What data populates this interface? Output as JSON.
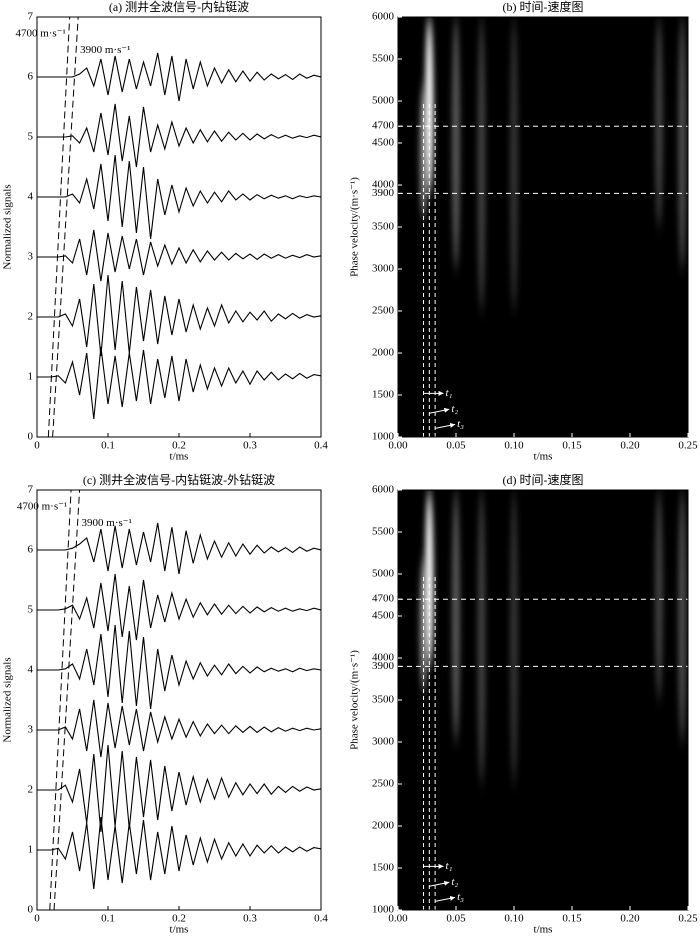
{
  "chart_data": [
    {
      "type": "line",
      "title": "(a) 测井全波信号-内钻铤波",
      "xlabel": "t/ms",
      "ylabel": "Normalized signals",
      "xlim": [
        0,
        0.4
      ],
      "ylim": [
        0,
        7
      ],
      "xticks": [
        0,
        0.1,
        0.2,
        0.3,
        0.4
      ],
      "yticks": [
        0,
        1,
        2,
        3,
        4,
        5,
        6,
        7
      ],
      "x": [
        0,
        0.01,
        0.02,
        0.03,
        0.04,
        0.05,
        0.06,
        0.07,
        0.08,
        0.09,
        0.1,
        0.11,
        0.12,
        0.13,
        0.14,
        0.15,
        0.16,
        0.17,
        0.18,
        0.19,
        0.2,
        0.21,
        0.22,
        0.23,
        0.24,
        0.25,
        0.26,
        0.27,
        0.28,
        0.29,
        0.3,
        0.31,
        0.32,
        0.33,
        0.34,
        0.35,
        0.36,
        0.37,
        0.38,
        0.39,
        0.4
      ],
      "series": [
        {
          "color": "#000000",
          "values": [
            1,
            1,
            1,
            1.02,
            0.9,
            1.25,
            0.7,
            1.4,
            0.3,
            1.5,
            0.55,
            1.35,
            0.5,
            1.4,
            0.6,
            1.45,
            0.55,
            1.3,
            0.65,
            1.35,
            0.6,
            1.3,
            0.75,
            1.2,
            0.8,
            1.15,
            0.85,
            1.15,
            0.9,
            1.1,
            0.88,
            1.1,
            0.95,
            1.08,
            0.95,
            1.05,
            0.97,
            1.06,
            0.98,
            1.04,
            1.02
          ]
        },
        {
          "color": "#000000",
          "values": [
            2,
            2,
            2,
            2,
            2.05,
            1.85,
            2.3,
            1.5,
            2.55,
            1.35,
            2.7,
            1.45,
            2.6,
            1.4,
            2.5,
            1.6,
            2.45,
            1.55,
            2.35,
            1.7,
            2.3,
            1.75,
            2.2,
            1.8,
            2.15,
            1.85,
            2.2,
            1.9,
            2.1,
            1.92,
            2.08,
            1.95,
            2.1,
            1.93,
            2.05,
            1.97,
            2.06,
            1.98,
            2.04,
            2,
            2.02
          ]
        },
        {
          "color": "#000000",
          "values": [
            3,
            3,
            3,
            3,
            3.02,
            2.9,
            3.3,
            2.7,
            3.45,
            2.6,
            3.4,
            2.75,
            3.35,
            2.8,
            3.3,
            2.7,
            3.25,
            2.85,
            3.2,
            2.88,
            3.15,
            2.9,
            3.12,
            2.92,
            3.1,
            2.95,
            3.08,
            2.95,
            3.06,
            2.97,
            3.05,
            2.96,
            3.05,
            2.98,
            3.04,
            2.98,
            3.03,
            2.99,
            3.04,
            3,
            3.02
          ]
        },
        {
          "color": "#000000",
          "values": [
            4,
            4,
            4,
            4,
            4,
            4.05,
            3.9,
            4.3,
            3.8,
            4.55,
            3.6,
            4.7,
            3.5,
            4.6,
            3.4,
            4.5,
            3.3,
            4.3,
            3.7,
            4.2,
            3.75,
            4.15,
            3.85,
            4.1,
            3.9,
            4.08,
            3.92,
            4.1,
            3.95,
            4.05,
            3.95,
            4.04,
            3.97,
            4.03,
            3.98,
            4.02,
            3.97,
            4.02,
            3.99,
            4.02,
            4
          ]
        },
        {
          "color": "#000000",
          "values": [
            5,
            5,
            5,
            5,
            5,
            5.02,
            4.9,
            5.15,
            4.75,
            5.4,
            4.7,
            5.55,
            4.6,
            5.35,
            4.5,
            5.5,
            4.75,
            5.2,
            4.8,
            5.25,
            4.85,
            5.15,
            4.9,
            5.12,
            4.92,
            5.1,
            4.93,
            5.08,
            4.95,
            5.06,
            4.95,
            5.05,
            4.97,
            5.04,
            4.98,
            5.03,
            4.98,
            5.02,
            4.99,
            5.03,
            5
          ]
        },
        {
          "color": "#000000",
          "values": [
            6,
            6,
            6,
            6,
            6,
            6,
            6.05,
            6.15,
            5.85,
            6.3,
            5.7,
            6.35,
            5.75,
            6.3,
            5.8,
            6.25,
            5.85,
            6.4,
            5.7,
            6.35,
            5.6,
            6.3,
            5.8,
            6.25,
            5.85,
            6.15,
            5.9,
            6.12,
            5.92,
            6.1,
            5.93,
            6.08,
            5.95,
            6.05,
            5.97,
            6.04,
            5.96,
            6.05,
            5.98,
            6.03,
            6
          ]
        }
      ],
      "reference_lines": [
        {
          "label": "4700 m·s⁻¹",
          "x": [
            0.016,
            0.046
          ],
          "y": [
            0,
            7
          ]
        },
        {
          "label": "3900 m·s⁻¹",
          "x": [
            0.022,
            0.058
          ],
          "y": [
            0,
            7
          ]
        }
      ]
    },
    {
      "type": "heatmap",
      "title": "(b) 时间-速度图",
      "xlabel": "t/ms",
      "ylabel": "Phase velocity/(m·s⁻¹)",
      "xlim": [
        0,
        0.25
      ],
      "ylim": [
        1000,
        6000
      ],
      "xticks": [
        {
          "value": 0,
          "label": "0.00"
        },
        {
          "value": 0.05,
          "label": "0.05"
        },
        {
          "value": 0.1,
          "label": "0.10"
        },
        {
          "value": 0.15,
          "label": "0.15"
        },
        {
          "value": 0.2,
          "label": "0.20"
        },
        {
          "value": 0.25,
          "label": "0.25"
        }
      ],
      "yticks": [
        1000,
        1500,
        2000,
        2500,
        3000,
        3500,
        3900,
        4000,
        4500,
        4700,
        5000,
        5500,
        6000
      ],
      "streaks": [
        {
          "t": 0.027,
          "v": [
            3900,
            6000
          ],
          "intensity": 1
        },
        {
          "t": 0.022,
          "v": [
            3600,
            5200
          ],
          "intensity": 0.5
        },
        {
          "t": 0.05,
          "v": [
            3000,
            6000
          ],
          "intensity": 0.35
        },
        {
          "t": 0.072,
          "v": [
            2500,
            6000
          ],
          "intensity": 0.25
        },
        {
          "t": 0.1,
          "v": [
            2500,
            6000
          ],
          "intensity": 0.2
        },
        {
          "t": 0.225,
          "v": [
            3500,
            6000
          ],
          "intensity": 0.25
        },
        {
          "t": 0.245,
          "v": [
            3000,
            6000
          ],
          "intensity": 0.3
        }
      ],
      "hlines": [
        4700,
        3900
      ],
      "markers": [
        {
          "label": "t₁",
          "x": 0.022,
          "label_y": 1520
        },
        {
          "label": "t₂",
          "x": 0.027,
          "label_y": 1330
        },
        {
          "label": "t₃",
          "x": 0.032,
          "label_y": 1150
        }
      ],
      "marker_top": 5000
    },
    {
      "type": "line",
      "title": "(c) 测井全波信号-内钻铤波-外钻铤波",
      "xlabel": "t/ms",
      "ylabel": "Normalized signals",
      "xlim": [
        0,
        0.4
      ],
      "ylim": [
        0,
        7
      ],
      "xticks": [
        0,
        0.1,
        0.2,
        0.3,
        0.4
      ],
      "yticks": [
        0,
        1,
        2,
        3,
        4,
        5,
        6,
        7
      ],
      "x": [
        0,
        0.01,
        0.02,
        0.03,
        0.04,
        0.05,
        0.06,
        0.07,
        0.08,
        0.09,
        0.1,
        0.11,
        0.12,
        0.13,
        0.14,
        0.15,
        0.16,
        0.17,
        0.18,
        0.19,
        0.2,
        0.21,
        0.22,
        0.23,
        0.24,
        0.25,
        0.26,
        0.27,
        0.28,
        0.29,
        0.3,
        0.31,
        0.32,
        0.33,
        0.34,
        0.35,
        0.36,
        0.37,
        0.38,
        0.39,
        0.4
      ],
      "series": [
        {
          "color": "#000000",
          "values": [
            1,
            1,
            1,
            1.03,
            0.85,
            1.3,
            0.65,
            1.45,
            0.35,
            1.55,
            0.5,
            1.4,
            0.45,
            1.45,
            0.6,
            1.5,
            0.5,
            1.3,
            0.6,
            1.4,
            0.65,
            1.25,
            0.75,
            1.2,
            0.8,
            1.18,
            0.85,
            1.12,
            0.9,
            1.1,
            0.9,
            1.08,
            0.95,
            1.07,
            0.95,
            1.05,
            0.97,
            1.05,
            0.98,
            1.04,
            1.02
          ]
        },
        {
          "color": "#000000",
          "values": [
            2,
            2,
            2,
            2,
            2.08,
            1.8,
            2.35,
            1.45,
            2.6,
            1.3,
            2.75,
            1.4,
            2.65,
            1.35,
            2.55,
            1.55,
            2.5,
            1.5,
            2.4,
            1.65,
            2.3,
            1.75,
            2.22,
            1.8,
            2.18,
            1.85,
            2.2,
            1.88,
            2.12,
            1.92,
            2.1,
            1.94,
            2.1,
            1.93,
            2.06,
            1.96,
            2.06,
            1.98,
            2.05,
            2,
            2.02
          ]
        },
        {
          "color": "#000000",
          "values": [
            3,
            3,
            3,
            3,
            3.05,
            2.85,
            3.35,
            2.65,
            3.5,
            2.55,
            3.45,
            2.7,
            3.4,
            2.75,
            3.35,
            2.65,
            3.3,
            2.8,
            3.22,
            2.85,
            3.18,
            2.88,
            3.14,
            2.9,
            3.1,
            2.94,
            3.08,
            2.94,
            3.07,
            2.96,
            3.06,
            2.96,
            3.05,
            2.97,
            3.04,
            2.98,
            3.03,
            2.99,
            3.03,
            3,
            3.02
          ]
        },
        {
          "color": "#000000",
          "values": [
            4,
            4,
            4,
            4,
            4.02,
            4.1,
            3.85,
            4.35,
            3.75,
            4.6,
            3.55,
            4.75,
            3.45,
            4.65,
            3.4,
            4.55,
            3.35,
            4.35,
            3.65,
            4.25,
            3.75,
            4.15,
            3.85,
            4.12,
            3.9,
            4.08,
            3.92,
            4.1,
            3.94,
            4.06,
            3.95,
            4.05,
            3.97,
            4.03,
            3.98,
            4.02,
            3.97,
            4.03,
            3.99,
            4.02,
            4
          ]
        },
        {
          "color": "#000000",
          "values": [
            5,
            5,
            5,
            5,
            5.02,
            5.08,
            4.85,
            5.2,
            4.7,
            5.45,
            4.65,
            5.6,
            4.55,
            5.4,
            4.5,
            5.5,
            4.7,
            5.25,
            4.8,
            5.28,
            4.85,
            5.18,
            4.88,
            5.12,
            4.92,
            5.1,
            4.93,
            5.08,
            4.94,
            5.06,
            4.95,
            5.05,
            4.97,
            5.04,
            4.98,
            5.03,
            4.98,
            5.02,
            4.99,
            5.03,
            5
          ]
        },
        {
          "color": "#000000",
          "values": [
            6,
            6,
            6,
            6,
            6,
            6.03,
            6.1,
            6.2,
            5.8,
            6.35,
            5.65,
            6.4,
            5.7,
            6.35,
            5.75,
            6.3,
            5.8,
            6.45,
            5.65,
            6.38,
            5.6,
            6.32,
            5.78,
            6.25,
            5.85,
            6.15,
            5.88,
            6.12,
            5.9,
            6.1,
            5.93,
            6.08,
            5.95,
            6.05,
            5.97,
            6.04,
            5.96,
            6.05,
            5.98,
            6.03,
            6
          ]
        }
      ],
      "reference_lines": [
        {
          "label": "4700 m·s⁻¹",
          "x": [
            0.018,
            0.048
          ],
          "y": [
            0,
            7
          ]
        },
        {
          "label": "3900 m·s⁻¹",
          "x": [
            0.024,
            0.06
          ],
          "y": [
            0,
            7
          ]
        }
      ]
    },
    {
      "type": "heatmap",
      "title": "(d) 时间-速度图",
      "xlabel": "t/ms",
      "ylabel": "Phase velocity/(m·s⁻¹)",
      "xlim": [
        0,
        0.25
      ],
      "ylim": [
        1000,
        6000
      ],
      "xticks": [
        {
          "value": 0,
          "label": "0.00"
        },
        {
          "value": 0.05,
          "label": "0.05"
        },
        {
          "value": 0.1,
          "label": "0.10"
        },
        {
          "value": 0.15,
          "label": "0.15"
        },
        {
          "value": 0.2,
          "label": "0.20"
        },
        {
          "value": 0.25,
          "label": "0.25"
        }
      ],
      "yticks": [
        1000,
        1500,
        2000,
        2500,
        3000,
        3500,
        3900,
        4000,
        4500,
        4700,
        5000,
        5500,
        6000
      ],
      "streaks": [
        {
          "t": 0.027,
          "v": [
            3900,
            6000
          ],
          "intensity": 1
        },
        {
          "t": 0.022,
          "v": [
            3600,
            5200
          ],
          "intensity": 0.5
        },
        {
          "t": 0.05,
          "v": [
            3000,
            6000
          ],
          "intensity": 0.35
        },
        {
          "t": 0.072,
          "v": [
            2500,
            6000
          ],
          "intensity": 0.25
        },
        {
          "t": 0.1,
          "v": [
            2500,
            6000
          ],
          "intensity": 0.2
        },
        {
          "t": 0.225,
          "v": [
            3500,
            6000
          ],
          "intensity": 0.25
        },
        {
          "t": 0.245,
          "v": [
            3000,
            6000
          ],
          "intensity": 0.3
        }
      ],
      "hlines": [
        4700,
        3900
      ],
      "markers": [
        {
          "label": "t₁",
          "x": 0.022,
          "label_y": 1520
        },
        {
          "label": "t₂",
          "x": 0.027,
          "label_y": 1330
        },
        {
          "label": "t₃",
          "x": 0.032,
          "label_y": 1150
        }
      ],
      "marker_top": 5000
    }
  ]
}
